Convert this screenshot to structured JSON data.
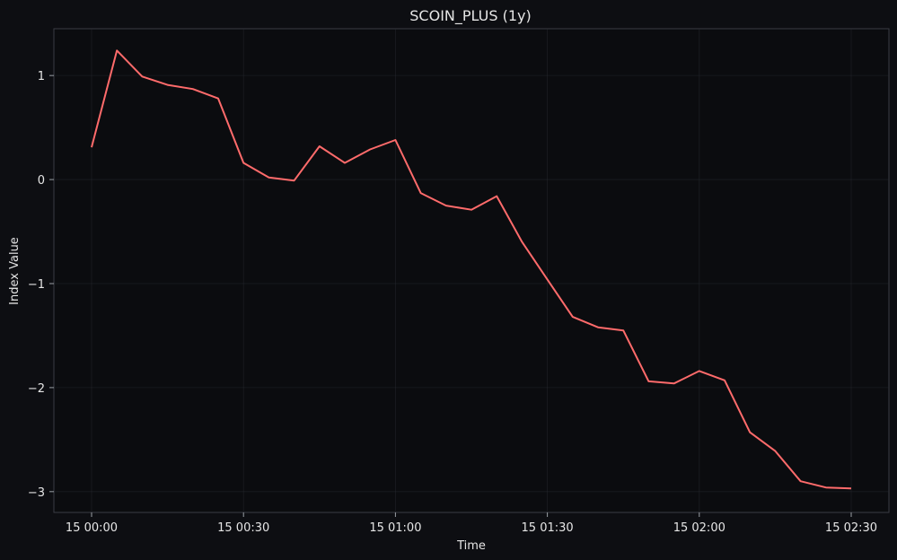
{
  "chart_data": {
    "type": "line",
    "title": "SCOIN_PLUS (1y)",
    "xlabel": "Time",
    "ylabel": "Index Value",
    "x_ticks": [
      "15 00:00",
      "15 00:30",
      "15 01:00",
      "15 01:30",
      "15 02:00",
      "15 02:30"
    ],
    "y_ticks": [
      1,
      0,
      -1,
      -2,
      -3
    ],
    "y_tick_labels": [
      "1",
      "0",
      "−1",
      "−2",
      "−3"
    ],
    "xlim": [
      "15 00:00",
      "15 02:30"
    ],
    "ylim": [
      -3.2,
      1.45
    ],
    "grid": true,
    "colors": {
      "line": "#ff6b6b",
      "background": "#0d0e12"
    },
    "series": [
      {
        "x": [
          "15 00:00",
          "15 00:05",
          "15 00:10",
          "15 00:15",
          "15 00:20",
          "15 00:25",
          "15 00:30",
          "15 00:35",
          "15 00:40",
          "15 00:45",
          "15 00:50",
          "15 00:55",
          "15 01:00",
          "15 01:05",
          "15 01:10",
          "15 01:15",
          "15 01:20",
          "15 01:25",
          "15 01:30",
          "15 01:35",
          "15 01:40",
          "15 01:45",
          "15 01:50",
          "15 01:55",
          "15 02:00",
          "15 02:05",
          "15 02:10",
          "15 02:15",
          "15 02:20",
          "15 02:25",
          "15 02:30"
        ],
        "values": [
          0.31,
          1.24,
          0.99,
          0.91,
          0.87,
          0.78,
          0.16,
          0.02,
          -0.01,
          0.32,
          0.16,
          0.29,
          0.38,
          -0.13,
          -0.25,
          -0.29,
          -0.16,
          -0.6,
          -0.96,
          -1.32,
          -1.42,
          -1.45,
          -1.94,
          -1.96,
          -1.84,
          -1.93,
          -2.43,
          -2.61,
          -2.9,
          -2.96,
          -2.97
        ]
      }
    ]
  }
}
